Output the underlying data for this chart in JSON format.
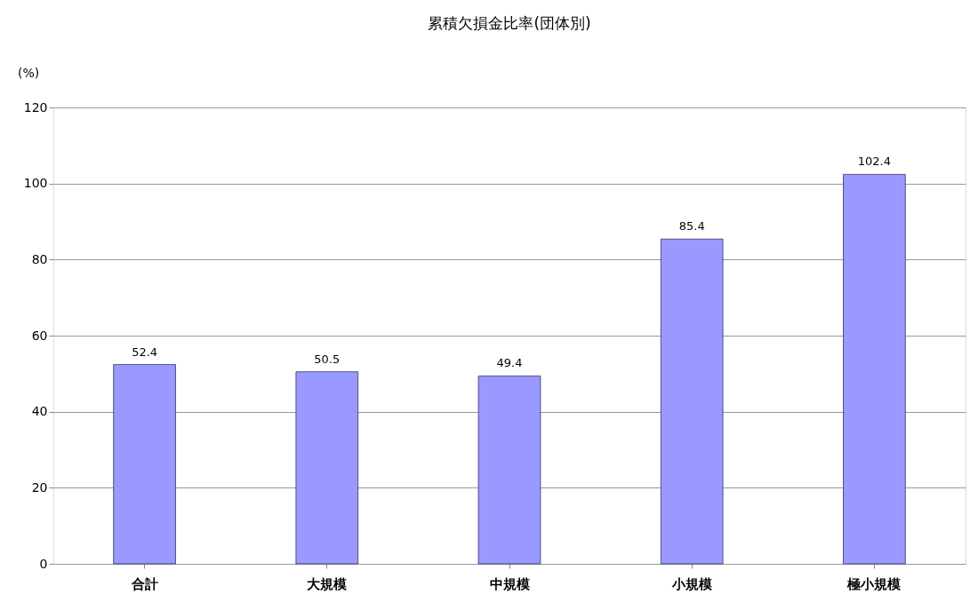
{
  "chart_data": {
    "type": "bar",
    "title": "累積欠損金比率(団体別)",
    "ylabel": "(%)",
    "categories": [
      "合計",
      "大規模",
      "中規模",
      "小規模",
      "極小規模"
    ],
    "values": [
      52.4,
      50.5,
      49.4,
      85.4,
      102.4
    ],
    "color": "#9999ff",
    "ylim": [
      0,
      120
    ],
    "yticks": [
      0,
      20,
      40,
      60,
      80,
      100,
      120
    ],
    "grid": "y",
    "data_labels": true
  }
}
